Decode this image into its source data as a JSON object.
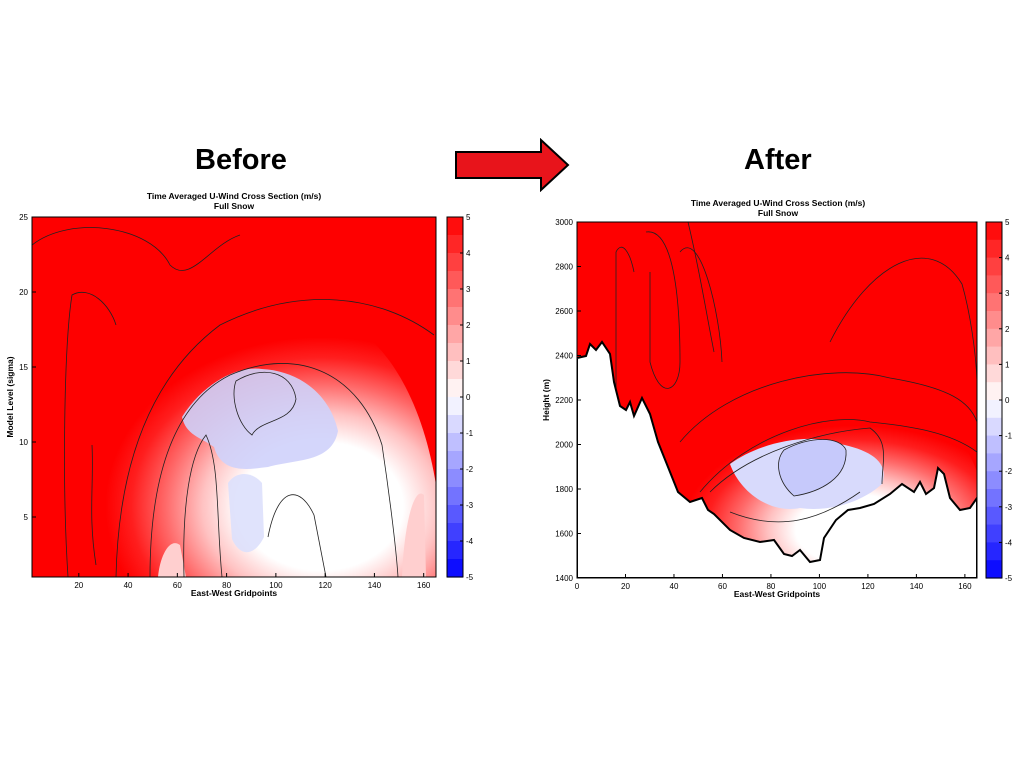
{
  "slide": {
    "before_label": "Before",
    "after_label": "After",
    "arrow_color": "#e8141b"
  },
  "chart_data": [
    {
      "type": "heatmap",
      "title": "Time Averaged U-Wind Cross Section (m/s)",
      "subtitle": "Full Snow",
      "xlabel": "East-West Gridpoints",
      "ylabel": "Model Level (sigma)",
      "xlim": [
        1,
        165
      ],
      "ylim": [
        1,
        25
      ],
      "x_ticks": [
        20,
        40,
        60,
        80,
        100,
        120,
        140,
        160
      ],
      "y_ticks": [
        5,
        10,
        15,
        20,
        25
      ],
      "colorbar": {
        "ticks": [
          5,
          4,
          3,
          2,
          1,
          0,
          -1,
          -2,
          -3,
          -4,
          -5
        ],
        "range": [
          -5,
          5
        ],
        "positive_color": "#ff0000",
        "negative_color": "#0000ff",
        "zero_color": "#ffffff"
      },
      "contours": true,
      "grid": false
    },
    {
      "type": "heatmap",
      "title": "Time Averaged U-Wind Cross Section (m/s)",
      "subtitle": "Full Snow",
      "xlabel": "East-West Gridpoints",
      "ylabel": "Height (m)",
      "xlim": [
        0,
        165
      ],
      "ylim": [
        1400,
        3000
      ],
      "x_ticks": [
        0,
        20,
        40,
        60,
        80,
        100,
        120,
        140,
        160
      ],
      "y_ticks": [
        1400,
        1600,
        1800,
        2000,
        2200,
        2400,
        2600,
        2800,
        3000
      ],
      "colorbar": {
        "ticks": [
          5,
          4,
          3,
          2,
          1,
          0,
          -1,
          -2,
          -3,
          -4,
          -5
        ],
        "range": [
          -5,
          5
        ],
        "positive_color": "#ff0000",
        "negative_color": "#0000ff",
        "zero_color": "#ffffff"
      },
      "terrain_outline": true,
      "contours": true,
      "grid": false
    }
  ]
}
